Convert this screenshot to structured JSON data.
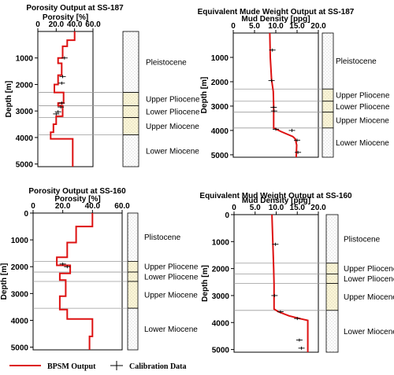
{
  "chart_data": [
    {
      "type": "line",
      "title": "Porosity Output at SS-187",
      "xlabel": "Porosity [%]",
      "ylabel": "Depth [m]",
      "xlim": [
        0,
        60
      ],
      "ylim": [
        0,
        5100
      ],
      "x_ticks": [
        "0",
        "20.0",
        "40.0",
        "60.0"
      ],
      "y_ticks": [
        "1000",
        "2000",
        "3000",
        "4000",
        "5000"
      ],
      "y_tick_values": [
        1000,
        2000,
        3000,
        4000,
        5000
      ],
      "x_tick_values": [
        0,
        20,
        40,
        60
      ],
      "series": [
        {
          "name": "BPSM Output",
          "color": "#dd1111",
          "points": [
            [
              40,
              0
            ],
            [
              40,
              330
            ],
            [
              32,
              330
            ],
            [
              32,
              560
            ],
            [
              27,
              560
            ],
            [
              27,
              1000
            ],
            [
              22,
              1000
            ],
            [
              22,
              1200
            ],
            [
              26,
              1200
            ],
            [
              26,
              1650
            ],
            [
              22,
              1650
            ],
            [
              22,
              2000
            ],
            [
              18,
              2000
            ],
            [
              18,
              2300
            ],
            [
              28,
              2300
            ],
            [
              28,
              2700
            ],
            [
              22,
              2700
            ],
            [
              22,
              2800
            ],
            [
              27,
              2800
            ],
            [
              27,
              3200
            ],
            [
              20,
              3200
            ],
            [
              20,
              3500
            ],
            [
              17,
              3500
            ],
            [
              17,
              3800
            ],
            [
              14,
              3800
            ],
            [
              14,
              4050
            ],
            [
              38,
              4050
            ],
            [
              38,
              5100
            ]
          ]
        },
        {
          "name": "Calibration Data",
          "points": [
            [
              29,
              1000
            ],
            [
              27,
              1700
            ],
            [
              26,
              1950
            ],
            [
              26,
              2700
            ],
            [
              25,
              2850
            ],
            [
              22,
              3030
            ],
            [
              20,
              3110
            ]
          ]
        }
      ],
      "zones": [
        {
          "label": "Pleistocene",
          "from": 0,
          "to": 2300
        },
        {
          "label": "Upper Pliocene",
          "from": 2300,
          "to": 2800
        },
        {
          "label": "Lower Pliocene",
          "from": 2800,
          "to": 3250
        },
        {
          "label": "Upper Miocene",
          "from": 3250,
          "to": 3900
        },
        {
          "label": "Lower Miocene",
          "from": 3900,
          "to": 5100
        }
      ]
    },
    {
      "type": "line",
      "title": "Equivalent Mude Weight Output at SS-187",
      "xlabel": "Mud Density [ppg]",
      "ylabel": "Depth [m]",
      "xlim": [
        0,
        20
      ],
      "ylim": [
        0,
        5100
      ],
      "x_ticks": [
        "0",
        "5.0",
        "10.0",
        "15.0",
        "20.0"
      ],
      "y_ticks": [
        "1000",
        "2000",
        "3000",
        "4000",
        "5000"
      ],
      "y_tick_values": [
        1000,
        2000,
        3000,
        4000,
        5000
      ],
      "x_tick_values": [
        0,
        5,
        10,
        15,
        20
      ],
      "series": [
        {
          "name": "BPSM Output",
          "color": "#dd1111",
          "points": [
            [
              8.6,
              0
            ],
            [
              8.7,
              1000
            ],
            [
              9.0,
              1900
            ],
            [
              9.4,
              2400
            ],
            [
              9.5,
              3000
            ],
            [
              9.5,
              3500
            ],
            [
              9.5,
              3900
            ],
            [
              11.3,
              4050
            ],
            [
              14.0,
              4250
            ],
            [
              14.6,
              4350
            ],
            [
              14.9,
              4600
            ],
            [
              14.8,
              5100
            ]
          ]
        },
        {
          "name": "Calibration Data",
          "points": [
            [
              9.2,
              700
            ],
            [
              9.0,
              1950
            ],
            [
              9.5,
              3050
            ],
            [
              9.6,
              3200
            ],
            [
              10.0,
              3950
            ],
            [
              13.8,
              4000
            ],
            [
              15.0,
              4400
            ],
            [
              15.2,
              4900
            ]
          ]
        }
      ],
      "zones": [
        {
          "label": "Pleistocene",
          "from": 0,
          "to": 2300
        },
        {
          "label": "Upper Pliocene",
          "from": 2300,
          "to": 2800
        },
        {
          "label": "Lower Pliocene",
          "from": 2800,
          "to": 3250
        },
        {
          "label": "Upper Miocene",
          "from": 3250,
          "to": 3900
        },
        {
          "label": "Lower Miocene",
          "from": 3900,
          "to": 5100
        }
      ]
    },
    {
      "type": "line",
      "title": "Porosity Output at SS-160",
      "xlabel": "Porosity [%]",
      "ylabel": "Depth [m]",
      "xlim": [
        0,
        60
      ],
      "ylim": [
        0,
        5100
      ],
      "x_ticks": [
        "0",
        "20.0",
        "40.0",
        "60.0"
      ],
      "y_ticks": [
        "0",
        "1000",
        "2000",
        "3000",
        "4000",
        "5000"
      ],
      "y_tick_values": [
        0,
        1000,
        2000,
        3000,
        4000,
        5000
      ],
      "x_tick_values": [
        0,
        20,
        40,
        60
      ],
      "series": [
        {
          "name": "BPSM Output",
          "color": "#dd1111",
          "points": [
            [
              40,
              0
            ],
            [
              40,
              500
            ],
            [
              29,
              500
            ],
            [
              29,
              1100
            ],
            [
              23,
              1100
            ],
            [
              23,
              1650
            ],
            [
              16,
              1650
            ],
            [
              16,
              1950
            ],
            [
              25,
              1950
            ],
            [
              25,
              2250
            ],
            [
              18,
              2250
            ],
            [
              18,
              2500
            ],
            [
              22,
              2500
            ],
            [
              22,
              3100
            ],
            [
              18,
              3100
            ],
            [
              18,
              3600
            ],
            [
              23,
              3600
            ],
            [
              23,
              3950
            ],
            [
              40,
              3950
            ],
            [
              40,
              4600
            ],
            [
              38,
              4600
            ],
            [
              38,
              5100
            ]
          ]
        },
        {
          "name": "Calibration Data",
          "points": [
            [
              20,
              1900
            ],
            [
              23,
              2000
            ]
          ]
        }
      ],
      "zones": [
        {
          "label": "Plistocene",
          "from": 0,
          "to": 1800
        },
        {
          "label": "Upper Pliocene",
          "from": 1800,
          "to": 2200
        },
        {
          "label": "Lower Pliocene",
          "from": 2200,
          "to": 2550
        },
        {
          "label": "Upper Miocene",
          "from": 2550,
          "to": 3550
        },
        {
          "label": "Lower Miocene",
          "from": 3550,
          "to": 5100
        }
      ]
    },
    {
      "type": "line",
      "title": "Equivalent Mud Weight Output at SS-160",
      "xlabel": "Mud Density [ppg]",
      "ylabel": "Depth [m]",
      "xlim": [
        0,
        20
      ],
      "ylim": [
        0,
        5100
      ],
      "x_ticks": [
        "0",
        "5.0",
        "10.0",
        "15.0",
        "20.0"
      ],
      "y_ticks": [
        "0",
        "1000",
        "2000",
        "3000",
        "4000",
        "5000"
      ],
      "y_tick_values": [
        0,
        1000,
        2000,
        3000,
        4000,
        5000
      ],
      "x_tick_values": [
        0,
        5,
        10,
        15,
        20
      ],
      "series": [
        {
          "name": "BPSM Output",
          "color": "#dd1111",
          "points": [
            [
              9.0,
              0
            ],
            [
              9.2,
              1000
            ],
            [
              9.4,
              2000
            ],
            [
              9.5,
              2600
            ],
            [
              9.5,
              3500
            ],
            [
              10.5,
              3600
            ],
            [
              13.0,
              3750
            ],
            [
              15.5,
              3850
            ],
            [
              17.5,
              3920
            ],
            [
              17.5,
              5100
            ]
          ]
        },
        {
          "name": "Calibration Data",
          "points": [
            [
              9.8,
              1100
            ],
            [
              9.6,
              3000
            ],
            [
              11.0,
              3600
            ],
            [
              15.0,
              3850
            ],
            [
              15.5,
              4650
            ],
            [
              16.0,
              4950
            ]
          ]
        }
      ],
      "zones": [
        {
          "label": "Plistocene",
          "from": 0,
          "to": 1800
        },
        {
          "label": "Upper Pliocene",
          "from": 1800,
          "to": 2200
        },
        {
          "label": "Lower Pliocene",
          "from": 2200,
          "to": 2550
        },
        {
          "label": "Upper Miocene",
          "from": 2550,
          "to": 3550
        },
        {
          "label": "Lower Miocene",
          "from": 3550,
          "to": 5100
        }
      ]
    }
  ],
  "legend": {
    "bpsm_label": "BPSM Output",
    "calibration_label": "Calibration Data"
  },
  "colors": {
    "line": "#dd1111",
    "highlight_zone": "#fbf6d8",
    "pattern_dot": "#b8b8b8"
  }
}
